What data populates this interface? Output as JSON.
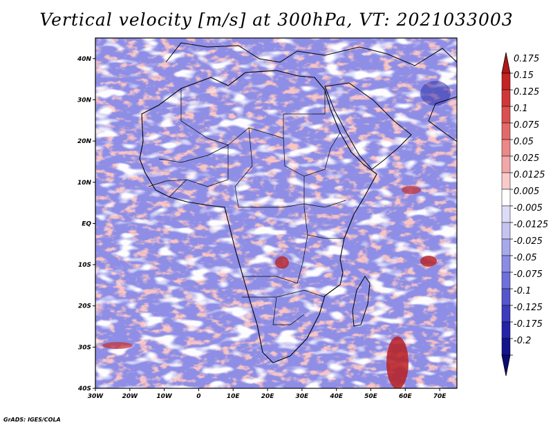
{
  "title": "Vertical velocity [m/s] at 300hPa, VT: 2021033003",
  "credit": "GrADS: IGES/COLA",
  "map": {
    "lon_range": [
      -30,
      75
    ],
    "lat_range": [
      -40,
      45
    ],
    "x_ticks": [
      "30W",
      "20W",
      "10W",
      "0",
      "10E",
      "20E",
      "30E",
      "40E",
      "50E",
      "60E",
      "70E"
    ],
    "y_ticks": [
      "40N",
      "30N",
      "20N",
      "10N",
      "EQ",
      "10S",
      "20S",
      "30S",
      "40S"
    ]
  },
  "colorbar": {
    "labels": [
      "0.175",
      "0.15",
      "0.125",
      "0.1",
      "0.075",
      "0.05",
      "0.025",
      "0.0125",
      "0.005",
      "-0.005",
      "-0.0125",
      "-0.025",
      "-0.05",
      "-0.075",
      "-0.1",
      "-0.125",
      "-0.175",
      "-0.2"
    ],
    "colors": [
      "#b21616",
      "#c42424",
      "#d03838",
      "#dc5050",
      "#e46a6a",
      "#ec8888",
      "#f2a8a8",
      "#f8caca",
      "#ffffff",
      "#dcdcf8",
      "#c4c4f2",
      "#a8a8ec",
      "#8c8ce4",
      "#7070da",
      "#5656cc",
      "#3c3cbc",
      "#2424a8",
      "#14148c",
      "#0a0a78"
    ]
  }
}
